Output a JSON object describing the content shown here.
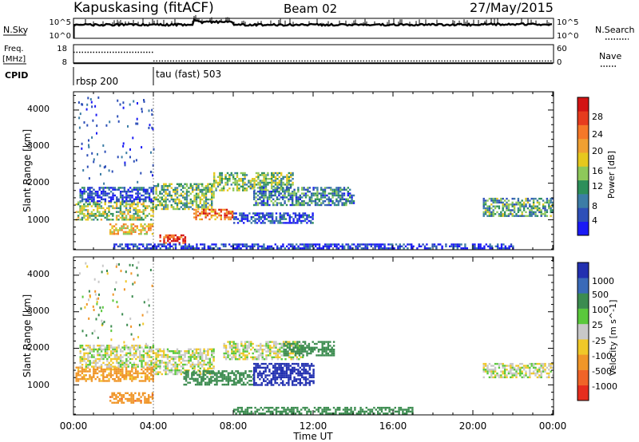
{
  "header": {
    "station": "Kapuskasing (fitACF)",
    "beam": "Beam 02",
    "date": "27/May/2015"
  },
  "top_panels": {
    "nsky": {
      "label": "N.Sky",
      "tick_top": "10^5",
      "tick_bottom": "10^0"
    },
    "nsearch": {
      "label": "N.Search",
      "tick_top": "10^5",
      "tick_bottom": "10^0"
    },
    "freq": {
      "label_line1": "Freq.",
      "label_line2": "[MHz]",
      "tick_top": "18",
      "tick_bottom": "8"
    },
    "nave": {
      "label": "Nave",
      "tick_top": "60",
      "tick_bottom": "0"
    },
    "cpid": {
      "label": "CPID",
      "modes": [
        {
          "name": "rbsp 200",
          "start_hour": 0
        },
        {
          "name": "tau (fast) 503",
          "start_hour": 4
        }
      ]
    }
  },
  "time_axis": {
    "title": "Time UT",
    "tick_labels": [
      "00:00",
      "04:00",
      "08:00",
      "12:00",
      "16:00",
      "20:00",
      "00:00"
    ],
    "range_hours": [
      0,
      24
    ]
  },
  "range_axis": {
    "title": "Slant Range [km]",
    "tick_labels": [
      "1000",
      "2000",
      "3000",
      "4000"
    ],
    "tick_values": [
      1000,
      2000,
      3000,
      4000
    ],
    "range_km": [
      180,
      4500
    ]
  },
  "power_colorbar": {
    "title": "Power [dB]",
    "labels": [
      "4",
      "8",
      "12",
      "16",
      "20",
      "24",
      "28"
    ],
    "colors": [
      "#1a1af5",
      "#2d4fb8",
      "#3c7da6",
      "#2d8f5a",
      "#8ec85a",
      "#e6c81e",
      "#f0a032",
      "#f57828",
      "#e63c1e",
      "#d21414"
    ]
  },
  "velocity_colorbar": {
    "title": "Velocity [m s^-1]",
    "labels": [
      "1000",
      "500",
      "100",
      "25",
      "-25",
      "-100",
      "-500",
      "-1000"
    ],
    "colors": [
      "#2230b0",
      "#3a6ab8",
      "#3c8c50",
      "#5ac83c",
      "#c8c8c8",
      "#f0c828",
      "#f09628",
      "#f06428",
      "#e62d1e"
    ]
  },
  "chart_data": {
    "type": "heatmap",
    "title": "Kapuskasing (fitACF) Beam 02 27/May/2015",
    "xlabel": "Time UT",
    "ylabel": "Slant Range [km]",
    "xlim_hours": [
      0,
      24
    ],
    "ylim_km": [
      180,
      4500
    ],
    "grid": false,
    "panels": [
      {
        "name": "Power",
        "units": "dB",
        "colorbar_ticks": [
          4,
          8,
          12,
          16,
          20,
          24,
          28
        ],
        "regions": [
          {
            "t": [
              0.1,
              4.0
            ],
            "r": [
              1000,
              1500
            ],
            "value": 16
          },
          {
            "t": [
              0.3,
              4.0
            ],
            "r": [
              1500,
              1900
            ],
            "value": 6
          },
          {
            "t": [
              1.8,
              4.0
            ],
            "r": [
              600,
              900
            ],
            "value": 20
          },
          {
            "t": [
              4.0,
              7.0
            ],
            "r": [
              1300,
              2000
            ],
            "value": 14
          },
          {
            "t": [
              4.3,
              5.6
            ],
            "r": [
              350,
              600
            ],
            "value": 28
          },
          {
            "t": [
              6.0,
              8.0
            ],
            "r": [
              1000,
              1300
            ],
            "value": 24
          },
          {
            "t": [
              7.0,
              11.0
            ],
            "r": [
              1800,
              2300
            ],
            "value": 14
          },
          {
            "t": [
              9.0,
              14.0
            ],
            "r": [
              1400,
              1900
            ],
            "value": 10
          },
          {
            "t": [
              8.0,
              12.0
            ],
            "r": [
              900,
              1200
            ],
            "value": 6
          },
          {
            "t": [
              20.5,
              24.0
            ],
            "r": [
              1100,
              1600
            ],
            "value": 12
          },
          {
            "t": [
              2.0,
              22.0
            ],
            "r": [
              200,
              350
            ],
            "value": 5
          }
        ]
      },
      {
        "name": "Velocity",
        "units": "m s^-1",
        "colorbar_ticks": [
          1000,
          500,
          100,
          25,
          -25,
          -100,
          -500,
          -1000
        ],
        "regions": [
          {
            "t": [
              0.1,
              4.0
            ],
            "r": [
              1100,
              1500
            ],
            "value": -100
          },
          {
            "t": [
              0.3,
              4.0
            ],
            "r": [
              1500,
              2100
            ],
            "value": 0
          },
          {
            "t": [
              1.8,
              4.0
            ],
            "r": [
              500,
              800
            ],
            "value": -200
          },
          {
            "t": [
              4.0,
              7.0
            ],
            "r": [
              1300,
              2000
            ],
            "value": 0
          },
          {
            "t": [
              5.5,
              9.0
            ],
            "r": [
              1000,
              1400
            ],
            "value": 150
          },
          {
            "t": [
              7.5,
              11.5
            ],
            "r": [
              1700,
              2200
            ],
            "value": 0
          },
          {
            "t": [
              9.0,
              12.0
            ],
            "r": [
              1000,
              1600
            ],
            "value": 800
          },
          {
            "t": [
              10.5,
              13.0
            ],
            "r": [
              1800,
              2200
            ],
            "value": 150
          },
          {
            "t": [
              20.5,
              24.0
            ],
            "r": [
              1200,
              1600
            ],
            "value": 0
          },
          {
            "t": [
              8.0,
              17.0
            ],
            "r": [
              200,
              400
            ],
            "value": 150
          }
        ]
      }
    ],
    "nsky_level": 0.68,
    "nsearch_level": 0.68,
    "freq_mhz": 10.5,
    "nave_before_0400": 30,
    "nave_after_0400": 12
  }
}
